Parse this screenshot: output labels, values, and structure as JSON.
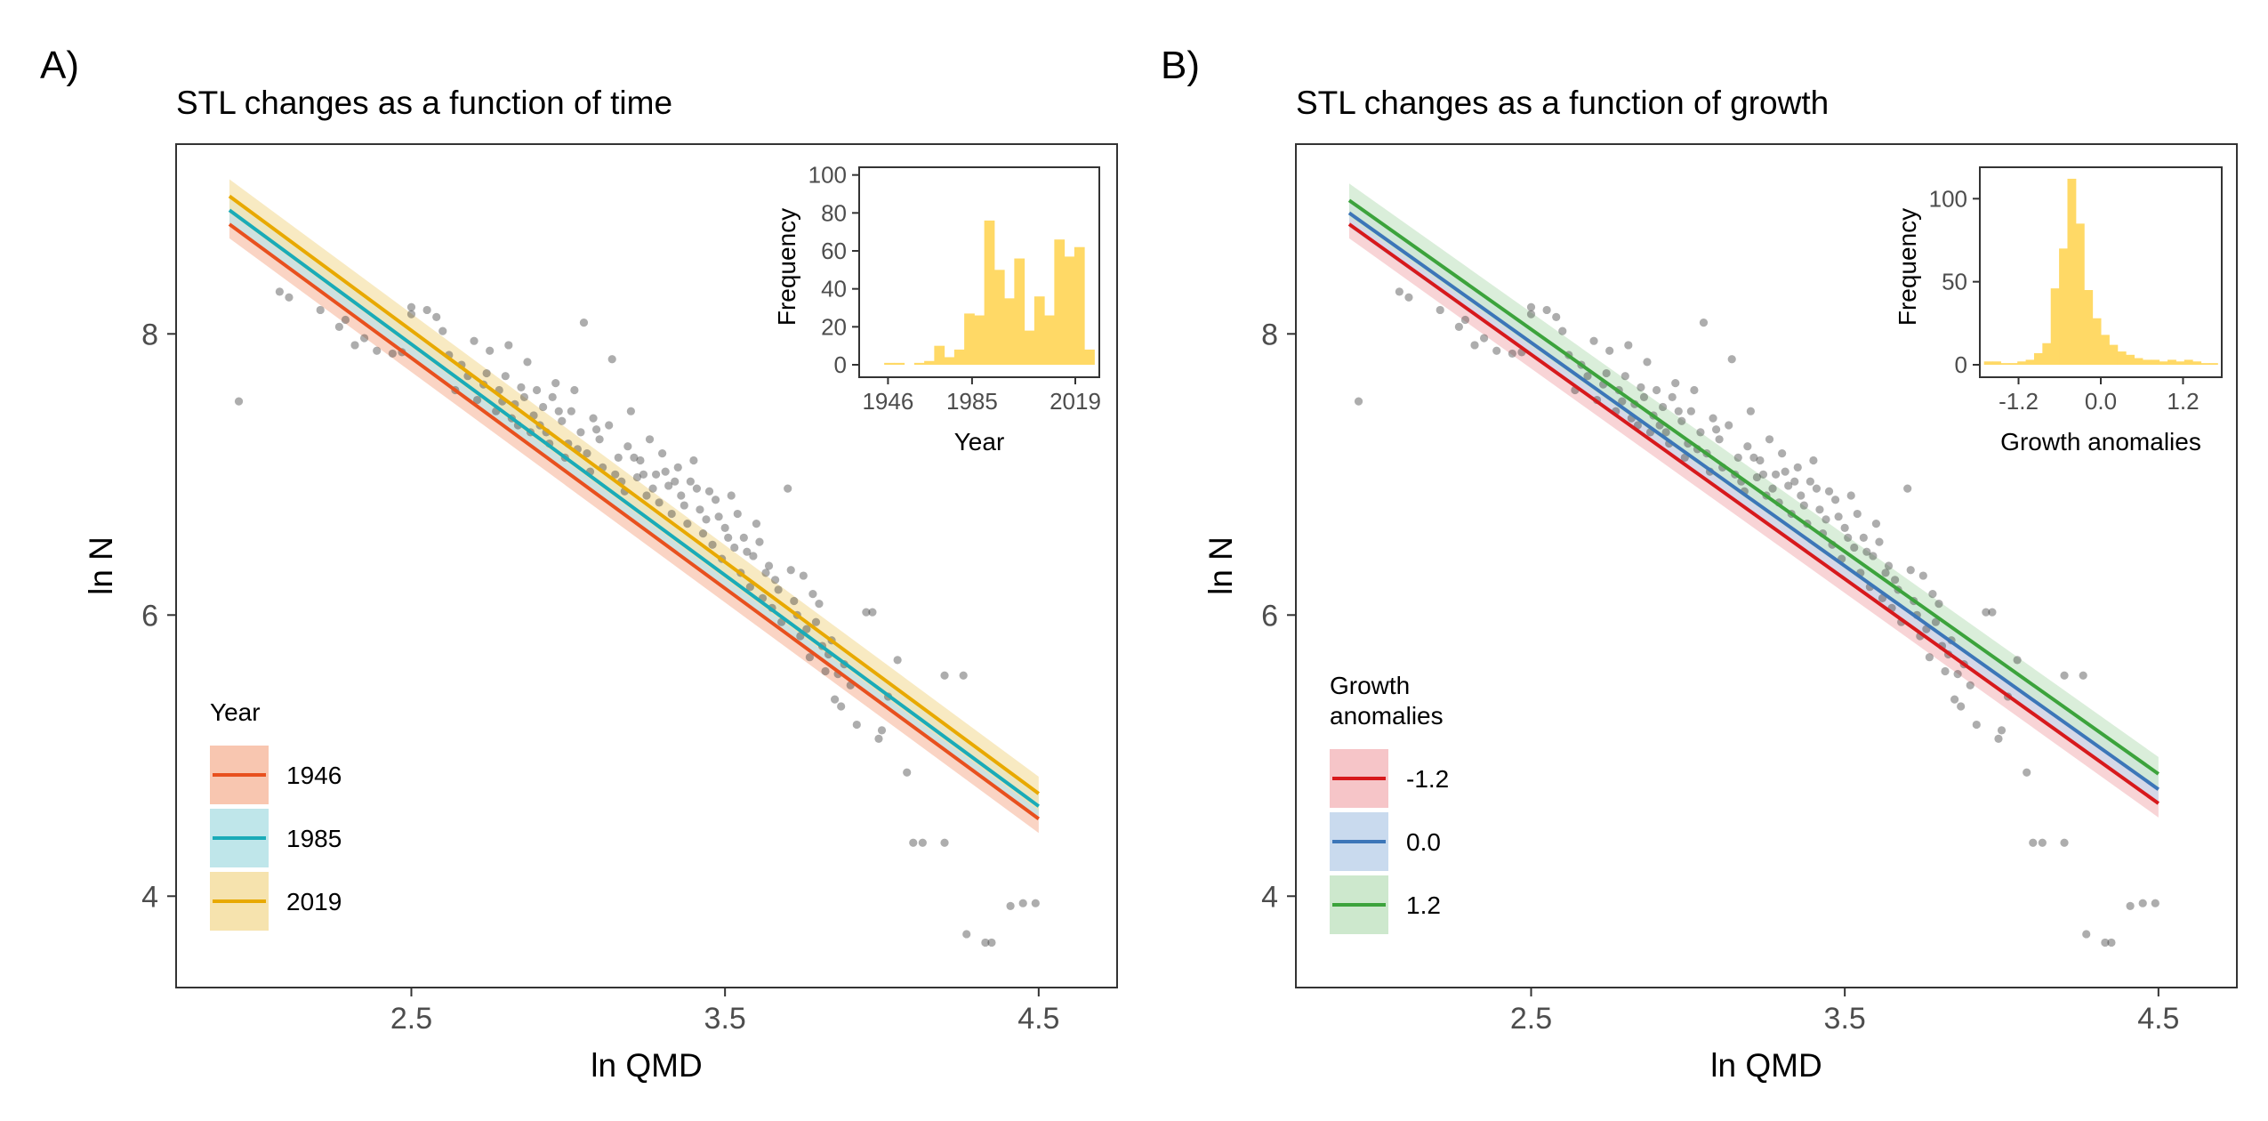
{
  "figure": {
    "panel_a_label": "A)",
    "panel_b_label": "B)"
  },
  "chart_data": [
    {
      "panel": "A)",
      "type": "scatter",
      "title": "STL changes as a function of time",
      "xlabel": "ln QMD",
      "ylabel": "ln N",
      "xlim": [
        1.75,
        4.75
      ],
      "ylim": [
        3.35,
        9.35
      ],
      "x_ticks": [
        2.5,
        3.5,
        4.5
      ],
      "x_tick_labels": [
        "2.5",
        "3.5",
        "4.5"
      ],
      "y_ticks": [
        4,
        6,
        8
      ],
      "y_tick_labels": [
        "4",
        "6",
        "8"
      ],
      "grid": false,
      "legend": {
        "title": "Year",
        "placement": "bottom-left",
        "entries": [
          {
            "label": "1946",
            "color": "#E8501E",
            "band_color": "#F8C6B0"
          },
          {
            "label": "1985",
            "color": "#1AABB8",
            "band_color": "#BFE6EA"
          },
          {
            "label": "2019",
            "color": "#E8A900",
            "band_color": "#F6E3AE"
          }
        ]
      },
      "fit_lines": [
        {
          "label": "1946",
          "x": [
            1.92,
            4.5
          ],
          "y": [
            8.78,
            4.55
          ],
          "ci_halfwidth": 0.1
        },
        {
          "label": "1985",
          "x": [
            1.92,
            4.5
          ],
          "y": [
            8.88,
            4.64
          ],
          "ci_halfwidth": 0.1
        },
        {
          "label": "2019",
          "x": [
            1.92,
            4.5
          ],
          "y": [
            8.98,
            4.73
          ],
          "ci_halfwidth": 0.12
        }
      ],
      "points": [
        {
          "x": 1.95,
          "y": 7.52
        },
        {
          "x": 2.08,
          "y": 8.3
        },
        {
          "x": 2.11,
          "y": 8.26
        },
        {
          "x": 2.21,
          "y": 8.17
        },
        {
          "x": 2.27,
          "y": 8.05
        },
        {
          "x": 2.29,
          "y": 8.1
        },
        {
          "x": 2.32,
          "y": 7.92
        },
        {
          "x": 2.35,
          "y": 7.97
        },
        {
          "x": 2.39,
          "y": 7.88
        },
        {
          "x": 2.44,
          "y": 7.86
        },
        {
          "x": 2.47,
          "y": 7.87
        },
        {
          "x": 2.5,
          "y": 8.14
        },
        {
          "x": 2.5,
          "y": 8.19
        },
        {
          "x": 2.55,
          "y": 8.17
        },
        {
          "x": 2.58,
          "y": 8.12
        },
        {
          "x": 2.6,
          "y": 8.02
        },
        {
          "x": 2.62,
          "y": 7.85
        },
        {
          "x": 2.64,
          "y": 7.6
        },
        {
          "x": 2.66,
          "y": 7.78
        },
        {
          "x": 2.68,
          "y": 7.7
        },
        {
          "x": 2.7,
          "y": 7.95
        },
        {
          "x": 2.71,
          "y": 7.53
        },
        {
          "x": 2.73,
          "y": 7.64
        },
        {
          "x": 2.75,
          "y": 7.88
        },
        {
          "x": 2.77,
          "y": 7.45
        },
        {
          "x": 2.78,
          "y": 7.6
        },
        {
          "x": 2.8,
          "y": 7.7
        },
        {
          "x": 2.81,
          "y": 7.92
        },
        {
          "x": 2.83,
          "y": 7.5
        },
        {
          "x": 2.84,
          "y": 7.35
        },
        {
          "x": 2.86,
          "y": 7.55
        },
        {
          "x": 2.87,
          "y": 7.8
        },
        {
          "x": 2.89,
          "y": 7.42
        },
        {
          "x": 2.9,
          "y": 7.6
        },
        {
          "x": 2.92,
          "y": 7.48
        },
        {
          "x": 2.93,
          "y": 7.3
        },
        {
          "x": 2.95,
          "y": 7.55
        },
        {
          "x": 2.96,
          "y": 7.65
        },
        {
          "x": 2.98,
          "y": 7.38
        },
        {
          "x": 3.0,
          "y": 7.22
        },
        {
          "x": 3.01,
          "y": 7.45
        },
        {
          "x": 3.02,
          "y": 7.6
        },
        {
          "x": 3.04,
          "y": 7.3
        },
        {
          "x": 3.05,
          "y": 8.08
        },
        {
          "x": 3.06,
          "y": 7.15
        },
        {
          "x": 3.08,
          "y": 7.4
        },
        {
          "x": 3.1,
          "y": 7.25
        },
        {
          "x": 3.11,
          "y": 7.05
        },
        {
          "x": 3.13,
          "y": 7.35
        },
        {
          "x": 3.14,
          "y": 7.82
        },
        {
          "x": 3.16,
          "y": 7.12
        },
        {
          "x": 3.17,
          "y": 6.95
        },
        {
          "x": 3.19,
          "y": 7.2
        },
        {
          "x": 3.2,
          "y": 7.45
        },
        {
          "x": 3.22,
          "y": 6.98
        },
        {
          "x": 3.23,
          "y": 7.1
        },
        {
          "x": 3.25,
          "y": 6.85
        },
        {
          "x": 3.26,
          "y": 7.25
        },
        {
          "x": 3.28,
          "y": 7.0
        },
        {
          "x": 3.29,
          "y": 6.8
        },
        {
          "x": 3.3,
          "y": 7.15
        },
        {
          "x": 3.32,
          "y": 6.92
        },
        {
          "x": 3.33,
          "y": 6.72
        },
        {
          "x": 3.35,
          "y": 7.05
        },
        {
          "x": 3.36,
          "y": 6.85
        },
        {
          "x": 3.38,
          "y": 6.65
        },
        {
          "x": 3.39,
          "y": 6.95
        },
        {
          "x": 3.4,
          "y": 7.1
        },
        {
          "x": 3.42,
          "y": 6.75
        },
        {
          "x": 3.43,
          "y": 6.58
        },
        {
          "x": 3.45,
          "y": 6.88
        },
        {
          "x": 3.46,
          "y": 6.5
        },
        {
          "x": 3.48,
          "y": 6.7
        },
        {
          "x": 3.49,
          "y": 6.4
        },
        {
          "x": 3.5,
          "y": 6.62
        },
        {
          "x": 3.52,
          "y": 6.85
        },
        {
          "x": 3.53,
          "y": 6.48
        },
        {
          "x": 3.55,
          "y": 6.3
        },
        {
          "x": 3.56,
          "y": 6.55
        },
        {
          "x": 3.58,
          "y": 6.2
        },
        {
          "x": 3.59,
          "y": 6.42
        },
        {
          "x": 3.6,
          "y": 6.65
        },
        {
          "x": 3.62,
          "y": 6.12
        },
        {
          "x": 3.63,
          "y": 6.3
        },
        {
          "x": 3.65,
          "y": 6.05
        },
        {
          "x": 3.66,
          "y": 6.25
        },
        {
          "x": 3.68,
          "y": 5.95
        },
        {
          "x": 3.7,
          "y": 6.9
        },
        {
          "x": 3.72,
          "y": 6.1
        },
        {
          "x": 3.74,
          "y": 5.85
        },
        {
          "x": 3.75,
          "y": 6.28
        },
        {
          "x": 3.77,
          "y": 5.7
        },
        {
          "x": 3.79,
          "y": 5.95
        },
        {
          "x": 3.8,
          "y": 6.08
        },
        {
          "x": 3.82,
          "y": 5.6
        },
        {
          "x": 3.84,
          "y": 5.82
        },
        {
          "x": 3.85,
          "y": 5.4
        },
        {
          "x": 3.87,
          "y": 5.35
        },
        {
          "x": 3.88,
          "y": 5.65
        },
        {
          "x": 3.9,
          "y": 5.5
        },
        {
          "x": 3.92,
          "y": 5.22
        },
        {
          "x": 3.95,
          "y": 6.02
        },
        {
          "x": 3.97,
          "y": 6.02
        },
        {
          "x": 3.99,
          "y": 5.12
        },
        {
          "x": 4.0,
          "y": 5.18
        },
        {
          "x": 4.02,
          "y": 5.42
        },
        {
          "x": 4.05,
          "y": 5.68
        },
        {
          "x": 4.08,
          "y": 4.88
        },
        {
          "x": 4.1,
          "y": 4.38
        },
        {
          "x": 4.13,
          "y": 4.38
        },
        {
          "x": 4.2,
          "y": 4.38
        },
        {
          "x": 4.2,
          "y": 5.57
        },
        {
          "x": 4.26,
          "y": 5.57
        },
        {
          "x": 4.27,
          "y": 3.73
        },
        {
          "x": 4.33,
          "y": 3.67
        },
        {
          "x": 4.35,
          "y": 3.67
        },
        {
          "x": 4.41,
          "y": 3.93
        },
        {
          "x": 4.45,
          "y": 3.95
        },
        {
          "x": 4.49,
          "y": 3.95
        },
        {
          "x": 2.74,
          "y": 7.72
        },
        {
          "x": 2.79,
          "y": 7.52
        },
        {
          "x": 2.85,
          "y": 7.62
        },
        {
          "x": 2.91,
          "y": 7.35
        },
        {
          "x": 2.97,
          "y": 7.45
        },
        {
          "x": 3.03,
          "y": 7.18
        },
        {
          "x": 3.09,
          "y": 7.32
        },
        {
          "x": 3.15,
          "y": 7.0
        },
        {
          "x": 3.21,
          "y": 7.12
        },
        {
          "x": 3.27,
          "y": 6.9
        },
        {
          "x": 3.31,
          "y": 7.02
        },
        {
          "x": 3.37,
          "y": 6.78
        },
        {
          "x": 3.41,
          "y": 6.9
        },
        {
          "x": 3.44,
          "y": 6.68
        },
        {
          "x": 3.47,
          "y": 6.82
        },
        {
          "x": 3.51,
          "y": 6.55
        },
        {
          "x": 3.54,
          "y": 6.72
        },
        {
          "x": 3.57,
          "y": 6.45
        },
        {
          "x": 3.61,
          "y": 6.52
        },
        {
          "x": 3.64,
          "y": 6.35
        },
        {
          "x": 3.67,
          "y": 6.18
        },
        {
          "x": 3.71,
          "y": 6.32
        },
        {
          "x": 3.73,
          "y": 6.0
        },
        {
          "x": 3.76,
          "y": 5.9
        },
        {
          "x": 3.78,
          "y": 6.15
        },
        {
          "x": 3.81,
          "y": 5.78
        },
        {
          "x": 3.83,
          "y": 5.72
        },
        {
          "x": 3.86,
          "y": 5.58
        },
        {
          "x": 3.24,
          "y": 7.0
        },
        {
          "x": 3.34,
          "y": 6.95
        },
        {
          "x": 3.18,
          "y": 6.88
        },
        {
          "x": 3.07,
          "y": 7.02
        },
        {
          "x": 2.99,
          "y": 7.12
        },
        {
          "x": 2.94,
          "y": 7.22
        },
        {
          "x": 2.88,
          "y": 7.3
        },
        {
          "x": 2.82,
          "y": 7.4
        }
      ],
      "inset": {
        "type": "bar",
        "xlabel": "Year",
        "ylabel": "Frequency",
        "x_tick_labels": [
          "1946",
          "1985",
          "2019"
        ],
        "y_tick_labels": [
          "0",
          "20",
          "40",
          "60",
          "80",
          "100"
        ],
        "ylim": [
          0,
          105
        ],
        "bin_start": 1941,
        "bin_width": 3,
        "values": [
          0,
          0,
          1,
          1,
          0,
          1,
          2,
          10,
          4,
          8,
          27,
          26,
          76,
          50,
          35,
          56,
          18,
          36,
          26,
          66,
          57,
          62,
          8
        ],
        "color": "#FFD966"
      }
    },
    {
      "panel": "B)",
      "type": "scatter",
      "title": "STL changes as a function of growth",
      "xlabel": "ln QMD",
      "ylabel": "ln N",
      "xlim": [
        1.75,
        4.75
      ],
      "ylim": [
        3.35,
        9.35
      ],
      "x_ticks": [
        2.5,
        3.5,
        4.5
      ],
      "x_tick_labels": [
        "2.5",
        "3.5",
        "4.5"
      ],
      "y_ticks": [
        4,
        6,
        8
      ],
      "y_tick_labels": [
        "4",
        "6",
        "8"
      ],
      "grid": false,
      "legend": {
        "title_line1": "Growth",
        "title_line2": "anomalies",
        "placement": "bottom-left",
        "entries": [
          {
            "label": "-1.2",
            "color": "#D7191C",
            "band_color": "#F6C5C8"
          },
          {
            "label": "0.0",
            "color": "#3C76B8",
            "band_color": "#C9DAEE"
          },
          {
            "label": "1.2",
            "color": "#3CA33C",
            "band_color": "#CDE8CD"
          }
        ]
      },
      "fit_lines": [
        {
          "label": "-1.2",
          "x": [
            1.92,
            4.5
          ],
          "y": [
            8.78,
            4.66
          ],
          "ci_halfwidth": 0.1
        },
        {
          "label": "0.0",
          "x": [
            1.92,
            4.5
          ],
          "y": [
            8.86,
            4.76
          ],
          "ci_halfwidth": 0.1
        },
        {
          "label": "1.2",
          "x": [
            1.92,
            4.5
          ],
          "y": [
            8.95,
            4.87
          ],
          "ci_halfwidth": 0.12
        }
      ],
      "points_same_as_panel": "A)",
      "inset": {
        "type": "bar",
        "xlabel": "Growth anomalies",
        "ylabel": "Frequency",
        "x_tick_labels": [
          "-1.2",
          "0.0",
          "1.2"
        ],
        "y_tick_labels": [
          "0",
          "50",
          "100"
        ],
        "ylim": [
          0,
          120
        ],
        "bin_start": -1.55,
        "bin_width": 0.1,
        "values": [
          2,
          2,
          1,
          1,
          2,
          3,
          7,
          13,
          46,
          70,
          112,
          85,
          45,
          28,
          18,
          12,
          8,
          6,
          4,
          3,
          3,
          2,
          3,
          2,
          3,
          2,
          1,
          1
        ],
        "color": "#FFD966"
      }
    }
  ]
}
